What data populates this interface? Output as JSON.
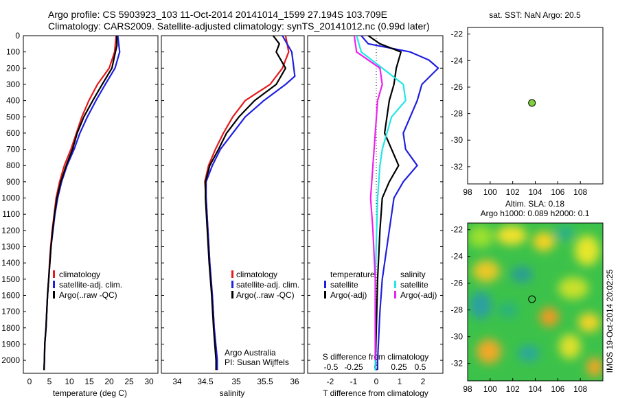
{
  "header": {
    "line1": "Argo profile: CS 5903923_103 11-Oct-2014 20141014_1599 27.194S 103.709E",
    "line2": "Climatology: CARS2009. Satellite-adjusted climatology: synTS_20141012.nc (0.99d later)"
  },
  "colors": {
    "climatology": "#e41a1c",
    "satellite": "#1f1fe0",
    "argo": "#000000",
    "salinity_satellite": "#22e6e6",
    "salinity_argo": "#ee22ee",
    "float_marker": "#7fd13b"
  },
  "panels": {
    "temperature": {
      "xlabel": "temperature (deg C)",
      "xticks": [
        "0",
        "5",
        "10",
        "15",
        "20",
        "25",
        "30"
      ],
      "legend": [
        "climatology",
        "satellite-adj. clim.",
        "Argo(..raw -QC)"
      ]
    },
    "salinity": {
      "xlabel": "salinity",
      "xticks": [
        "34",
        "34.5",
        "35",
        "35.5",
        "36"
      ],
      "legend": [
        "climatology",
        "satellite-adj. clim.",
        "Argo(..raw -QC)"
      ],
      "note1": "Argo Australia",
      "note2": "PI: Susan Wijffels"
    },
    "difference": {
      "xlabel": "T difference from climatology",
      "toplabel": "S difference from climatology",
      "s_ticks": [
        "-0.5",
        "-0.25",
        "0",
        "0.25",
        "0.5"
      ],
      "t_ticks": [
        "-2",
        "-1",
        "0",
        "1",
        "2"
      ],
      "legend_temperature_title": "temperature",
      "legend_salinity_title": "salinity",
      "legend_t": [
        "satellite",
        "Argo(-adj)"
      ],
      "legend_s": [
        "satellite",
        "Argo(-adj)"
      ]
    },
    "sst_map": {
      "title": "sat. SST: NaN Argo: 20.5",
      "xticks": [
        "98",
        "100",
        "102",
        "104",
        "106",
        "108"
      ],
      "yticks": [
        "-22",
        "-24",
        "-26",
        "-28",
        "-30",
        "-32"
      ]
    },
    "sla_map": {
      "title1": "Altim. SLA: 0.18",
      "title2": "Argo h1000: 0.089 h2000: 0.1",
      "xticks": [
        "98",
        "100",
        "102",
        "104",
        "106",
        "108"
      ],
      "yticks": [
        "-22",
        "-24",
        "-26",
        "-28",
        "-30",
        "-32"
      ],
      "side_text": "IMOS 19-Oct-2014 20:02:25"
    }
  },
  "depth_ticks": [
    "0",
    "100",
    "200",
    "300",
    "400",
    "500",
    "600",
    "700",
    "800",
    "900",
    "1000",
    "1100",
    "1200",
    "1300",
    "1400",
    "1500",
    "1600",
    "1700",
    "1800",
    "1900",
    "2000"
  ],
  "chart_data": [
    {
      "type": "line",
      "ylabel": "",
      "xlabel": "temperature (deg C)",
      "xlim": [
        -3,
        31.5
      ],
      "ylim": [
        2080,
        0
      ],
      "series": [
        {
          "name": "climatology",
          "points": [
            [
              20.8,
              0
            ],
            [
              20.4,
              100
            ],
            [
              19.0,
              200
            ],
            [
              16.0,
              300
            ],
            [
              13.8,
              400
            ],
            [
              12.0,
              500
            ],
            [
              10.6,
              600
            ],
            [
              9.2,
              700
            ],
            [
              7.5,
              800
            ],
            [
              6.3,
              900
            ],
            [
              5.4,
              1000
            ],
            [
              4.9,
              1100
            ],
            [
              4.4,
              1200
            ],
            [
              4.0,
              1300
            ],
            [
              3.7,
              1400
            ],
            [
              3.5,
              1500
            ],
            [
              3.2,
              1600
            ],
            [
              3.0,
              1700
            ],
            [
              2.8,
              1800
            ],
            [
              2.5,
              1900
            ],
            [
              2.4,
              2000
            ],
            [
              2.3,
              2060
            ]
          ]
        },
        {
          "name": "satellite-adj. clim.",
          "points": [
            [
              21.2,
              0
            ],
            [
              21.7,
              100
            ],
            [
              20.5,
              200
            ],
            [
              18.0,
              300
            ],
            [
              15.6,
              400
            ],
            [
              13.4,
              500
            ],
            [
              11.5,
              600
            ],
            [
              10.0,
              700
            ],
            [
              8.2,
              800
            ],
            [
              6.8,
              900
            ],
            [
              5.8,
              1000
            ],
            [
              5.1,
              1100
            ],
            [
              4.6,
              1200
            ],
            [
              4.1,
              1300
            ],
            [
              3.8,
              1400
            ],
            [
              3.5,
              1500
            ],
            [
              3.2,
              1600
            ],
            [
              3.0,
              1700
            ],
            [
              2.8,
              1800
            ],
            [
              2.5,
              1900
            ],
            [
              2.4,
              2000
            ],
            [
              2.3,
              2060
            ]
          ]
        },
        {
          "name": "Argo(..raw -QC)",
          "points": [
            [
              20.9,
              0
            ],
            [
              21.0,
              60
            ],
            [
              20.6,
              100
            ],
            [
              19.7,
              200
            ],
            [
              17.2,
              300
            ],
            [
              14.8,
              400
            ],
            [
              12.5,
              500
            ],
            [
              10.8,
              600
            ],
            [
              9.6,
              700
            ],
            [
              8.0,
              800
            ],
            [
              6.6,
              900
            ],
            [
              5.6,
              1000
            ],
            [
              5.0,
              1100
            ],
            [
              4.5,
              1200
            ],
            [
              4.1,
              1300
            ],
            [
              3.8,
              1400
            ],
            [
              3.5,
              1500
            ],
            [
              3.2,
              1600
            ],
            [
              3.0,
              1700
            ],
            [
              2.8,
              1800
            ],
            [
              2.5,
              1900
            ],
            [
              2.4,
              2000
            ],
            [
              2.3,
              2060
            ]
          ]
        }
      ]
    },
    {
      "type": "line",
      "xlabel": "salinity",
      "xlim": [
        33.8,
        36.1
      ],
      "ylim": [
        2080,
        0
      ],
      "series": [
        {
          "name": "climatology",
          "points": [
            [
              35.8,
              0
            ],
            [
              35.85,
              100
            ],
            [
              35.75,
              200
            ],
            [
              35.55,
              300
            ],
            [
              35.15,
              400
            ],
            [
              34.95,
              500
            ],
            [
              34.8,
              600
            ],
            [
              34.67,
              700
            ],
            [
              34.56,
              800
            ],
            [
              34.5,
              900
            ],
            [
              34.52,
              1000
            ],
            [
              34.55,
              1200
            ],
            [
              34.58,
              1400
            ],
            [
              34.62,
              1600
            ],
            [
              34.65,
              1800
            ],
            [
              34.7,
              2000
            ],
            [
              34.7,
              2060
            ]
          ]
        },
        {
          "name": "satellite-adj. clim.",
          "points": [
            [
              35.75,
              0
            ],
            [
              35.9,
              100
            ],
            [
              35.95,
              250
            ],
            [
              35.8,
              300
            ],
            [
              35.45,
              400
            ],
            [
              35.15,
              500
            ],
            [
              34.95,
              600
            ],
            [
              34.75,
              700
            ],
            [
              34.62,
              800
            ],
            [
              34.52,
              900
            ],
            [
              34.52,
              1000
            ],
            [
              34.55,
              1200
            ],
            [
              34.58,
              1400
            ],
            [
              34.62,
              1600
            ],
            [
              34.65,
              1800
            ],
            [
              34.7,
              2000
            ],
            [
              34.7,
              2060
            ]
          ]
        },
        {
          "name": "Argo(..raw -QC)",
          "points": [
            [
              35.6,
              0
            ],
            [
              35.7,
              50
            ],
            [
              35.65,
              100
            ],
            [
              35.8,
              200
            ],
            [
              35.65,
              300
            ],
            [
              35.3,
              400
            ],
            [
              35.05,
              500
            ],
            [
              34.85,
              600
            ],
            [
              34.72,
              700
            ],
            [
              34.58,
              800
            ],
            [
              34.51,
              900
            ],
            [
              34.51,
              1000
            ],
            [
              34.54,
              1200
            ],
            [
              34.57,
              1400
            ],
            [
              34.61,
              1600
            ],
            [
              34.64,
              1800
            ],
            [
              34.68,
              2000
            ],
            [
              34.68,
              2060
            ]
          ]
        }
      ]
    },
    {
      "type": "line",
      "xlabel": "T difference from climatology",
      "xlim": [
        -2.9,
        2.9
      ],
      "ylim": [
        2080,
        0
      ],
      "series": [
        {
          "name": "satellite",
          "points": [
            [
              -0.6,
              0
            ],
            [
              -0.3,
              50
            ],
            [
              1.5,
              100
            ],
            [
              2.3,
              150
            ],
            [
              2.7,
              200
            ],
            [
              2.0,
              300
            ],
            [
              1.8,
              400
            ],
            [
              1.2,
              600
            ],
            [
              1.3,
              700
            ],
            [
              1.8,
              800
            ],
            [
              1.2,
              900
            ],
            [
              0.8,
              1000
            ],
            [
              0.5,
              1300
            ],
            [
              0.3,
              1500
            ],
            [
              0.2,
              1700
            ],
            [
              0.1,
              2000
            ],
            [
              0.1,
              2060
            ]
          ]
        },
        {
          "name": "Argo(-adj)",
          "points": [
            [
              -0.3,
              0
            ],
            [
              0.2,
              50
            ],
            [
              1.1,
              100
            ],
            [
              0.9,
              200
            ],
            [
              0.8,
              300
            ],
            [
              0.6,
              400
            ],
            [
              0.5,
              500
            ],
            [
              0.4,
              600
            ],
            [
              0.7,
              700
            ],
            [
              1.0,
              800
            ],
            [
              0.6,
              900
            ],
            [
              0.3,
              1000
            ],
            [
              0.2,
              1200
            ],
            [
              0.1,
              1500
            ],
            [
              0.0,
              2060
            ]
          ]
        },
        {
          "name": "satellite (salinity)",
          "points": [
            [
              -0.8,
              0
            ],
            [
              -0.6,
              100
            ],
            [
              0.3,
              200
            ],
            [
              1.2,
              300
            ],
            [
              1.3,
              400
            ],
            [
              0.7,
              500
            ],
            [
              0.5,
              600
            ],
            [
              0.3,
              700
            ],
            [
              0.2,
              800
            ],
            [
              0.1,
              1000
            ],
            [
              0.0,
              1500
            ],
            [
              0.0,
              2060
            ]
          ]
        },
        {
          "name": "Argo(-adj) (salinity)",
          "points": [
            [
              -0.9,
              0
            ],
            [
              -0.8,
              100
            ],
            [
              0.2,
              200
            ],
            [
              0.3,
              300
            ],
            [
              0.1,
              400
            ],
            [
              0.0,
              600
            ],
            [
              -0.1,
              800
            ],
            [
              -0.2,
              1000
            ],
            [
              -0.1,
              1200
            ],
            [
              0.0,
              1500
            ],
            [
              0.0,
              2000
            ]
          ]
        }
      ]
    },
    {
      "type": "scatter",
      "title": "sat. SST: NaN Argo: 20.5",
      "xlim": [
        98,
        110
      ],
      "ylim": [
        -33.3,
        -21.5
      ],
      "points": [
        [
          103.709,
          -27.194
        ]
      ]
    },
    {
      "type": "heatmap",
      "title": "Altim. SLA: 0.18",
      "xlim": [
        98,
        110
      ],
      "ylim": [
        -33.3,
        -21.5
      ],
      "points": [
        [
          103.709,
          -27.194
        ]
      ]
    }
  ]
}
